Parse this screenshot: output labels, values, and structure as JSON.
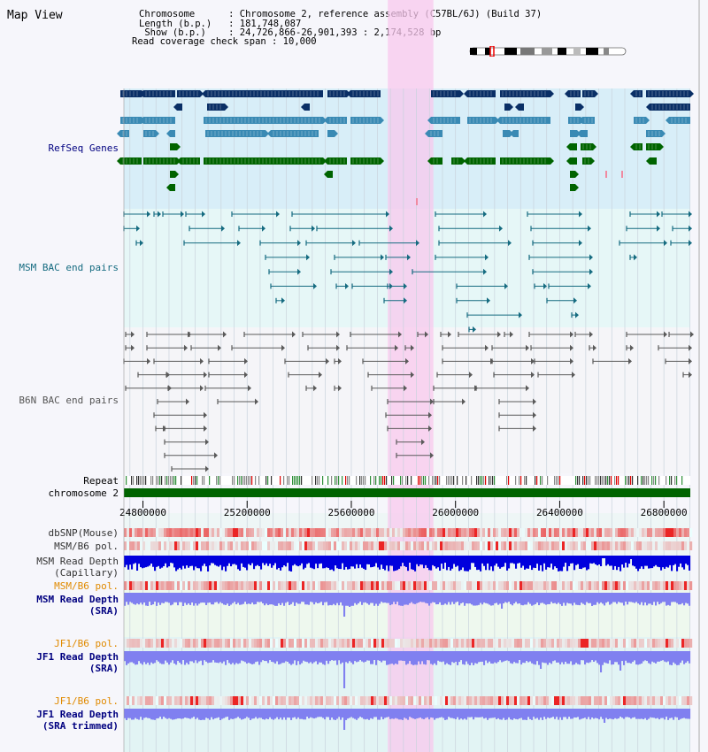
{
  "header": {
    "title": "Map View",
    "lines": [
      "Chromosome      : Chromosome 2, reference assembly (C57BL/6J) (Build 37)",
      "Length (b.p.)   : 181,748,087",
      " Show (b.p.)    : 24,726,866-26,901,393 : 2,174,528 bp",
      "Read coverage check span : 10,000"
    ]
  },
  "axis": {
    "start": 24726866,
    "end": 26901393,
    "ticks": [
      24800000,
      25200000,
      25600000,
      26000000,
      26400000,
      26800000
    ],
    "tick_labels": [
      "24800000",
      "25200000",
      "25600000",
      "26000000",
      "26400000",
      "26800000"
    ]
  },
  "highlight": {
    "start": 25740000,
    "end": 25915000
  },
  "tracks": {
    "refseq": "RefSeq Genes",
    "msm_bac": "MSM BAC end pairs",
    "b6n_bac": "B6N BAC end pairs",
    "repeat": "Repeat",
    "chromosome": "chromosome 2",
    "dbsnp": "dbSNP(Mouse)",
    "msm_b6_pol_1": "MSM/B6 pol.",
    "msm_depth_cap_1": "MSM Read Depth",
    "msm_depth_cap_2": "(Capillary)",
    "msm_b6_pol_2": "MSM/B6 pol.",
    "msm_depth_sra_1": "MSM Read Depth",
    "msm_depth_sra_2": "(SRA)",
    "jf1_b6_pol_1": "JF1/B6 pol.",
    "jf1_depth_sra_1": "JF1 Read Depth",
    "jf1_depth_sra_2": "(SRA)",
    "jf1_b6_pol_2": "JF1/B6 pol.",
    "jf1_depth_trim_1": "JF1 Read Depth",
    "jf1_depth_trim_2": "(SRA trimmed)"
  },
  "colors": {
    "refseq_dark": "#0a2f66",
    "refseq_mid": "#3a8ab4",
    "refseq_green": "#006400",
    "msm_bac": "#156b80",
    "b6n_bac": "#5a5a5a",
    "highlight": "#f8c8ee",
    "depth_capillary": "#0000dd",
    "depth_sra": "#8080f0",
    "pol_red": "#e00000"
  }
}
